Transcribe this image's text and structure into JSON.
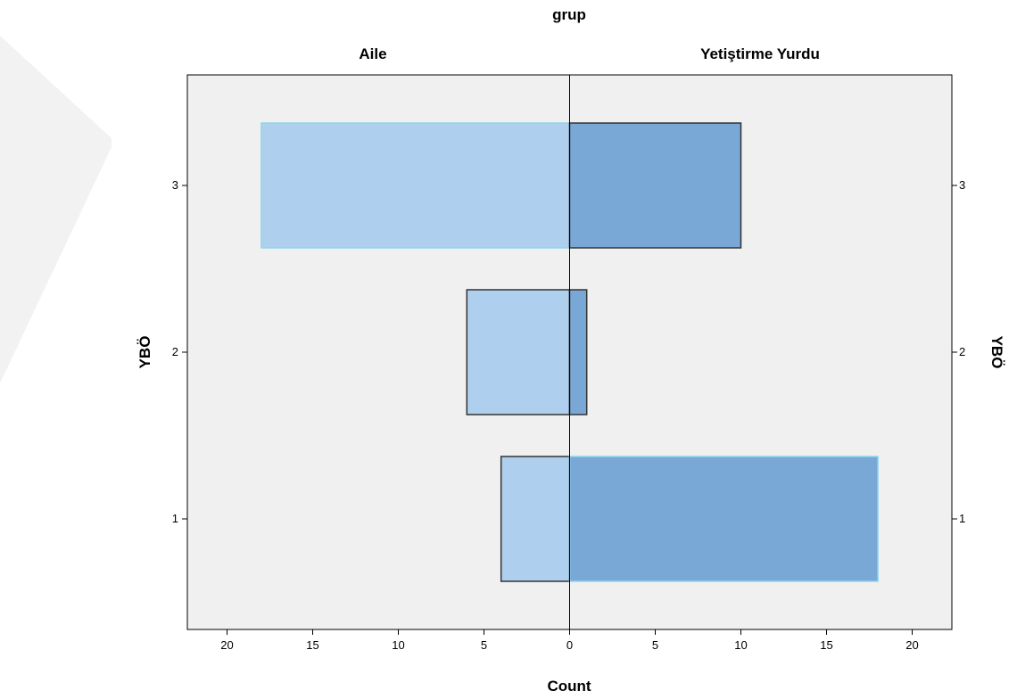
{
  "chart_data": {
    "type": "bar",
    "orientation": "horizontal",
    "layout": "population-pyramid",
    "title": "grup",
    "xlabel": "Count",
    "ylabel": "YBÖ",
    "categories": [
      "1",
      "2",
      "3"
    ],
    "series": [
      {
        "name": "Aile",
        "values": [
          4,
          6,
          18
        ],
        "color": "#aecfee",
        "side": "left"
      },
      {
        "name": "Yetiştirme Yurdu",
        "values": [
          18,
          1,
          10
        ],
        "color": "#7aa8d6",
        "side": "right"
      }
    ],
    "xlim": [
      0,
      20
    ],
    "x_ticks": [
      "20",
      "15",
      "10",
      "5",
      "0",
      "5",
      "10",
      "15",
      "20"
    ],
    "y_ticks": [
      "3",
      "2",
      "1"
    ],
    "y_ticks_right": [
      "3",
      "2",
      "1"
    ],
    "grid": false,
    "plot_background": "#f0f0f0"
  }
}
